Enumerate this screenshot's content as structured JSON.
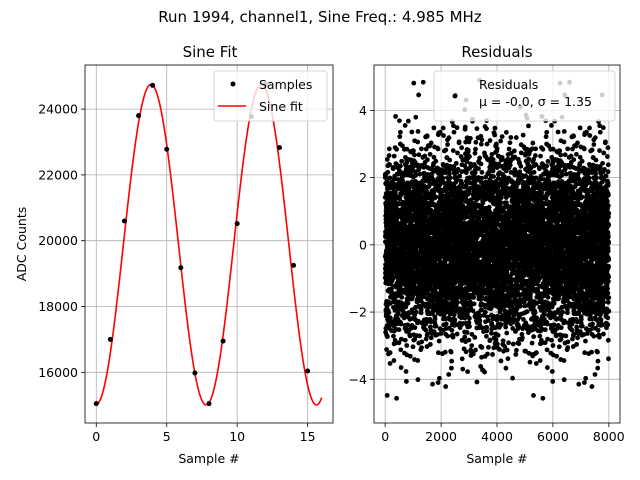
{
  "figure": {
    "suptitle": "Run 1994, channel1, Sine Freq.: 4.985 MHz"
  },
  "chart_data": [
    {
      "type": "line",
      "title": "Sine Fit",
      "xlabel": "Sample #",
      "ylabel": "ADC Counts",
      "xlim": [
        -0.8,
        16.8
      ],
      "ylim": [
        14460,
        25340
      ],
      "xticks": [
        0,
        5,
        10,
        15
      ],
      "yticks": [
        16000,
        18000,
        20000,
        22000,
        24000
      ],
      "xtick_labels": [
        "0",
        "5",
        "10",
        "15"
      ],
      "ytick_labels": [
        "16000",
        "18000",
        "20000",
        "22000",
        "24000"
      ],
      "grid": true,
      "legend_position": "top-right",
      "series": [
        {
          "name": "Samples",
          "kind": "scatter",
          "color": "#000000",
          "x": [
            0,
            1,
            2,
            3,
            4,
            5,
            6,
            7,
            8,
            9,
            10,
            11,
            12,
            13,
            14,
            15
          ],
          "y": [
            15050,
            17000,
            20600,
            23800,
            24720,
            22780,
            19180,
            15980,
            15050,
            16950,
            20520,
            23770,
            24750,
            22830,
            19250,
            16040
          ]
        },
        {
          "name": "Sine fit",
          "kind": "line",
          "color": "#ff0000",
          "function": {
            "offset": 19880,
            "amplitude": 4870,
            "period": 7.83,
            "peak_at": 3.88
          },
          "x_range": [
            0,
            16
          ]
        }
      ]
    },
    {
      "type": "scatter",
      "title": "Residuals",
      "xlabel": "Sample #",
      "ylabel": "",
      "xlim": [
        -400,
        8400
      ],
      "ylim": [
        -5.3,
        5.35
      ],
      "xticks": [
        0,
        2000,
        4000,
        6000,
        8000
      ],
      "yticks": [
        -4,
        -2,
        0,
        2,
        4
      ],
      "xtick_labels": [
        "0",
        "2000",
        "4000",
        "6000",
        "8000"
      ],
      "ytick_labels": [
        "−4",
        "−2",
        "0",
        "2",
        "4"
      ],
      "grid": true,
      "legend_position": "top-right",
      "series": [
        {
          "name": "Residuals",
          "color": "#000000",
          "n_points": 8000,
          "mu": -0.0,
          "sigma": 1.35,
          "range": [
            -4.9,
            4.9
          ]
        }
      ],
      "legend": {
        "label": "Residuals",
        "stats_mu": "μ = -0.0,",
        "stats_sigma": "σ = 1.35"
      }
    }
  ]
}
